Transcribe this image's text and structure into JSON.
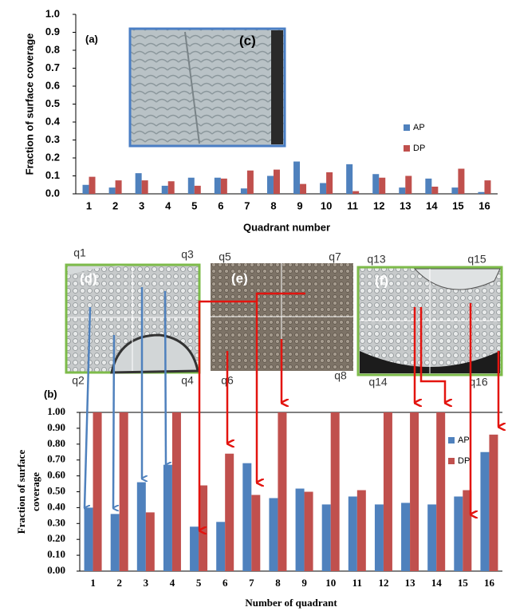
{
  "chart_data": [
    {
      "type": "bar",
      "panel_label": "(a)",
      "inset_label": "(c)",
      "xlabel": "Quadrant number",
      "ylabel": "Fraction of surface coverage",
      "categories": [
        "1",
        "2",
        "3",
        "4",
        "5",
        "6",
        "7",
        "8",
        "9",
        "10",
        "11",
        "12",
        "13",
        "14",
        "15",
        "16"
      ],
      "series": [
        {
          "name": "AP",
          "color": "#4f81bd",
          "values": [
            0.05,
            0.035,
            0.115,
            0.045,
            0.09,
            0.09,
            0.03,
            0.1,
            0.18,
            0.06,
            0.165,
            0.11,
            0.035,
            0.085,
            0.035,
            0.01
          ]
        },
        {
          "name": "DP",
          "color": "#c0504d",
          "values": [
            0.095,
            0.075,
            0.075,
            0.07,
            0.045,
            0.085,
            0.13,
            0.135,
            0.055,
            0.12,
            0.015,
            0.09,
            0.1,
            0.04,
            0.14,
            0.075
          ]
        }
      ],
      "ylim": [
        0,
        1
      ],
      "yticks": [
        {
          "value": 0,
          "label": "0.0"
        },
        0.1,
        0.2,
        0.3,
        0.4,
        0.5,
        0.6,
        0.7,
        0.8,
        0.9,
        {
          "value": 1,
          "label": "1.0"
        }
      ]
    },
    {
      "type": "bar",
      "panel_label": "(b)",
      "xlabel": "Number of quadrant",
      "ylabel": [
        "Fraction of surface",
        "coverage"
      ],
      "categories": [
        "1",
        "2",
        "3",
        "4",
        "5",
        "6",
        "7",
        "8",
        "9",
        "10",
        "11",
        "12",
        "13",
        "14",
        "15",
        "16"
      ],
      "series": [
        {
          "name": "AP",
          "color": "#4f81bd",
          "values": [
            0.4,
            0.36,
            0.56,
            0.67,
            0.28,
            0.31,
            0.68,
            0.46,
            0.52,
            0.42,
            0.47,
            0.42,
            0.43,
            0.42,
            0.47,
            0.75
          ]
        },
        {
          "name": "DP",
          "color": "#c0504d",
          "values": [
            1.0,
            1.0,
            0.37,
            1.0,
            0.54,
            0.74,
            0.48,
            1.0,
            0.5,
            1.0,
            0.51,
            1.0,
            1.0,
            1.0,
            0.51,
            0.86
          ]
        }
      ],
      "ylim": [
        0,
        1
      ],
      "yticks": [
        {
          "value": 0,
          "label": "0.00"
        },
        {
          "value": 0.1,
          "label": "0.10"
        },
        {
          "value": 0.2,
          "label": "0.20"
        },
        {
          "value": 0.3,
          "label": "0.30"
        },
        {
          "value": 0.4,
          "label": "0.40"
        },
        {
          "value": 0.5,
          "label": "0.50"
        },
        {
          "value": 0.6,
          "label": "0.60"
        },
        {
          "value": 0.7,
          "label": "0.70"
        },
        {
          "value": 0.8,
          "label": "0.80"
        },
        {
          "value": 0.9,
          "label": "0.90"
        },
        {
          "value": 1,
          "label": "1.00"
        }
      ]
    }
  ],
  "images": [
    {
      "label": "(d)",
      "quadrants": [
        "q1",
        "q2",
        "q3",
        "q4"
      ]
    },
    {
      "label": "(e)",
      "quadrants": [
        "q5",
        "q6",
        "q7",
        "q8"
      ]
    },
    {
      "label": "(f)",
      "quadrants": [
        "q13",
        "q14",
        "q15",
        "q16"
      ]
    }
  ]
}
